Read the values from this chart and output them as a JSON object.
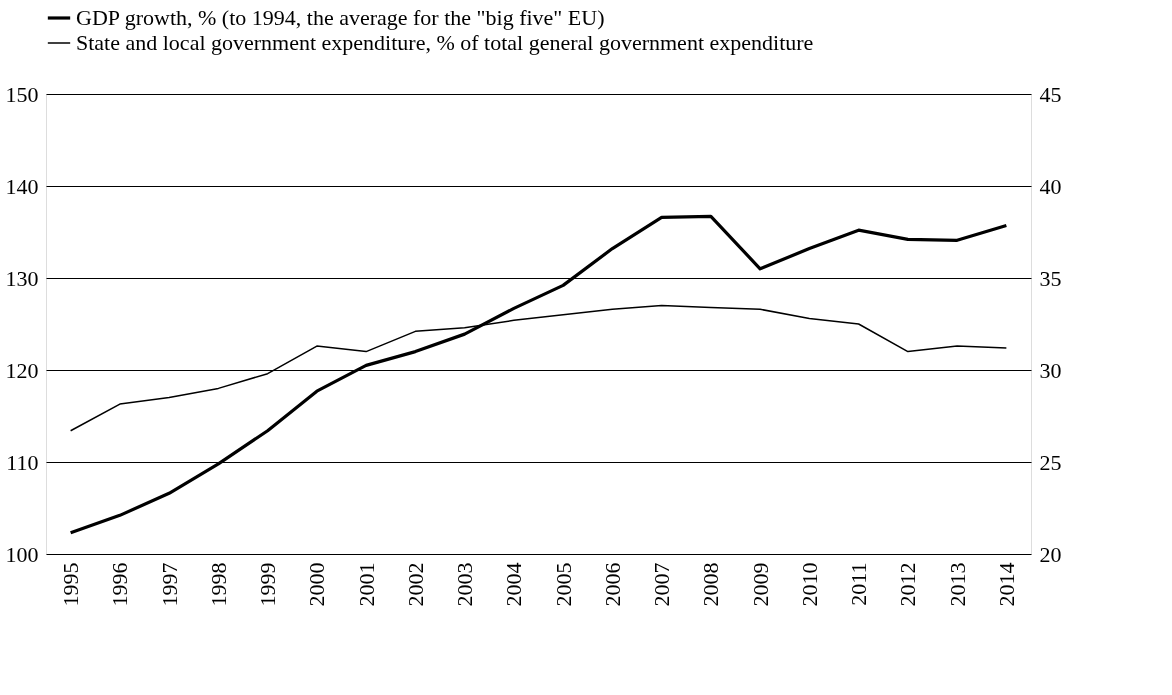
{
  "chart_data": {
    "type": "line",
    "categories": [
      "1995",
      "1996",
      "1997",
      "1998",
      "1999",
      "2000",
      "2001",
      "2002",
      "2003",
      "2004",
      "2005",
      "2006",
      "2007",
      "2008",
      "2009",
      "2010",
      "2011",
      "2012",
      "2013",
      "2014"
    ],
    "series": [
      {
        "name": "GDP growth, % (to 1994, the average for the \"big five\" EU)",
        "color": "#000000",
        "values": [
          102.3,
          104.2,
          106.6,
          109.8,
          113.4,
          117.7,
          120.5,
          122.0,
          123.9,
          126.7,
          129.2,
          133.2,
          136.6,
          136.7,
          131.0,
          133.2,
          135.2,
          134.2,
          134.1,
          135.7
        ]
      },
      {
        "name": "State and local government expenditure, % of total general government expenditure",
        "color": "#000000",
        "axis": "y2",
        "values": [
          26.7,
          28.15,
          28.5,
          29.0,
          29.8,
          31.3,
          31.0,
          32.1,
          32.3,
          32.7,
          33.0,
          33.3,
          33.5,
          33.4,
          33.3,
          32.8,
          32.5,
          31.0,
          31.3,
          31.2
        ]
      }
    ],
    "ylim": [
      100,
      150
    ],
    "yticks": [
      100,
      110,
      120,
      130,
      140,
      150
    ],
    "y2lim": [
      20,
      45
    ],
    "y2ticks": [
      20,
      25,
      30,
      35,
      40,
      45
    ],
    "grid": "y",
    "legend": "top left",
    "marker": "none",
    "line_style": "solid"
  }
}
